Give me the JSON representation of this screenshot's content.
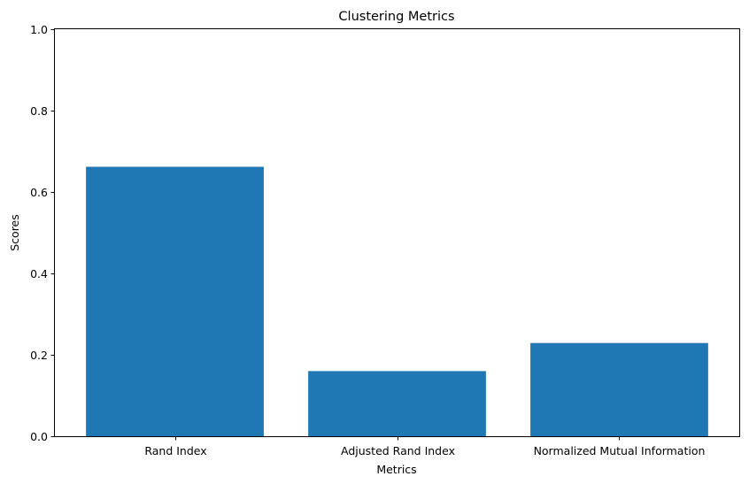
{
  "chart_data": {
    "type": "bar",
    "title": "Clustering Metrics",
    "xlabel": "Metrics",
    "ylabel": "Scores",
    "categories": [
      "Rand Index",
      "Adjusted Rand Index",
      "Normalized Mutual Information"
    ],
    "values": [
      0.662,
      0.16,
      0.229
    ],
    "ylim": [
      0,
      1
    ],
    "yticks": [
      "0.0",
      "0.2",
      "0.4",
      "0.6",
      "0.8",
      "1.0"
    ],
    "bar_color": "#1f77b4",
    "grid": false,
    "legend": "none"
  }
}
